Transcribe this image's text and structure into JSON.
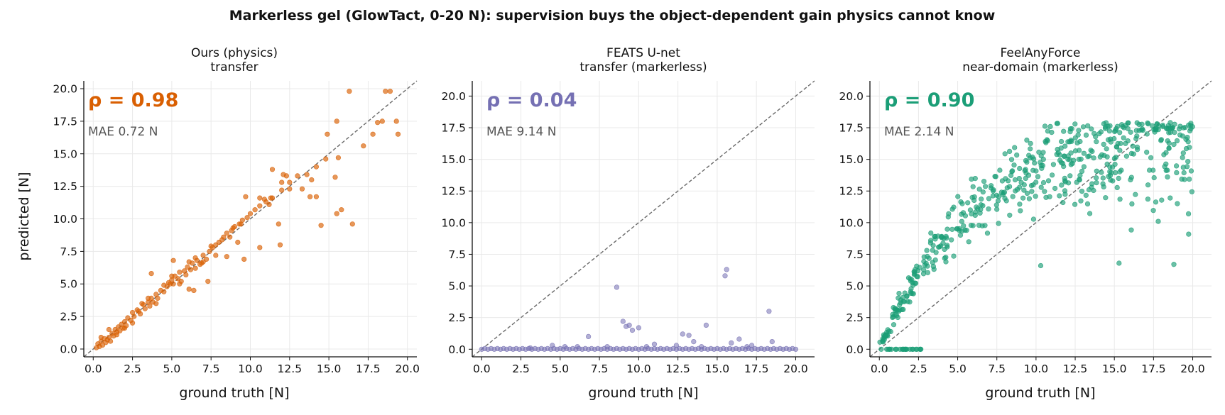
{
  "figure_title": "Markerless gel (GlowTact, 0-20 N): supervision buys the object-dependent gain physics cannot know",
  "chart_data": [
    {
      "type": "scatter",
      "title_line1": "Ours (physics)",
      "title_line2": "transfer",
      "xlabel": "ground truth [N]",
      "ylabel": "predicted [N]",
      "stat_text": "ρ = 0.98",
      "mae_text": "MAE 0.72 N",
      "color": "#d95f02",
      "xlim": [
        -0.6,
        20.6
      ],
      "ylim": [
        -0.6,
        20.6
      ],
      "xticks": [
        "0.0",
        "2.5",
        "5.0",
        "7.5",
        "10.0",
        "12.5",
        "15.0",
        "17.5",
        "20.0"
      ],
      "yticks": [
        "0.0",
        "2.5",
        "5.0",
        "7.5",
        "10.0",
        "12.5",
        "15.0",
        "17.5",
        "20.0"
      ],
      "points": [
        [
          0.2,
          0.1
        ],
        [
          0.3,
          0.4
        ],
        [
          0.4,
          0.2
        ],
        [
          0.5,
          0.6
        ],
        [
          0.6,
          0.3
        ],
        [
          0.7,
          0.8
        ],
        [
          0.8,
          0.5
        ],
        [
          0.9,
          0.7
        ],
        [
          1.0,
          0.9
        ],
        [
          1.1,
          0.6
        ],
        [
          1.2,
          1.2
        ],
        [
          1.3,
          1.0
        ],
        [
          1.4,
          1.5
        ],
        [
          1.5,
          1.3
        ],
        [
          1.6,
          1.7
        ],
        [
          1.7,
          1.4
        ],
        [
          1.8,
          1.9
        ],
        [
          1.9,
          1.6
        ],
        [
          2.0,
          2.1
        ],
        [
          2.1,
          1.8
        ],
        [
          2.2,
          2.4
        ],
        [
          2.4,
          2.2
        ],
        [
          2.5,
          2.8
        ],
        [
          2.6,
          2.5
        ],
        [
          2.8,
          3.0
        ],
        [
          3.0,
          2.7
        ],
        [
          3.2,
          3.4
        ],
        [
          3.3,
          3.1
        ],
        [
          3.5,
          3.6
        ],
        [
          3.6,
          3.3
        ],
        [
          3.7,
          3.9
        ],
        [
          3.8,
          3.6
        ],
        [
          4.0,
          4.2
        ],
        [
          4.1,
          3.9
        ],
        [
          4.3,
          4.5
        ],
        [
          4.5,
          4.4
        ],
        [
          4.7,
          4.8
        ],
        [
          4.8,
          5.1
        ],
        [
          5.0,
          5.3
        ],
        [
          5.1,
          5.0
        ],
        [
          5.2,
          5.6
        ],
        [
          5.4,
          5.4
        ],
        [
          5.5,
          5.9
        ],
        [
          5.6,
          5.2
        ],
        [
          5.8,
          6.0
        ],
        [
          5.9,
          5.7
        ],
        [
          6.0,
          6.3
        ],
        [
          6.2,
          6.1
        ],
        [
          6.3,
          6.6
        ],
        [
          6.5,
          6.2
        ],
        [
          6.6,
          6.8
        ],
        [
          6.8,
          6.5
        ],
        [
          7.0,
          7.2
        ],
        [
          7.2,
          6.9
        ],
        [
          7.4,
          7.5
        ],
        [
          7.6,
          7.8
        ],
        [
          7.8,
          8.0
        ],
        [
          8.0,
          8.2
        ],
        [
          8.3,
          8.6
        ],
        [
          8.5,
          8.9
        ],
        [
          8.8,
          9.1
        ],
        [
          9.0,
          9.4
        ],
        [
          9.3,
          9.6
        ],
        [
          9.5,
          9.9
        ],
        [
          9.8,
          10.1
        ],
        [
          10.0,
          10.4
        ],
        [
          10.3,
          10.7
        ],
        [
          10.6,
          11.0
        ],
        [
          11.0,
          11.3
        ],
        [
          11.4,
          11.6
        ],
        [
          12.0,
          12.2
        ],
        [
          12.5,
          12.8
        ],
        [
          13.0,
          13.3
        ],
        [
          13.6,
          13.4
        ],
        [
          14.2,
          14.0
        ],
        [
          14.8,
          14.6
        ],
        [
          0.5,
          0.9
        ],
        [
          1.0,
          1.5
        ],
        [
          1.5,
          1.1
        ],
        [
          2.0,
          1.6
        ],
        [
          2.5,
          2.0
        ],
        [
          3.1,
          3.5
        ],
        [
          3.5,
          3.9
        ],
        [
          4.0,
          3.5
        ],
        [
          4.5,
          4.9
        ],
        [
          5.0,
          5.6
        ],
        [
          5.5,
          5.0
        ],
        [
          6.1,
          6.7
        ],
        [
          6.5,
          7.0
        ],
        [
          7.0,
          6.7
        ],
        [
          7.5,
          7.9
        ],
        [
          8.2,
          8.4
        ],
        [
          8.7,
          8.6
        ],
        [
          3.7,
          5.8
        ],
        [
          5.1,
          6.8
        ],
        [
          6.1,
          4.6
        ],
        [
          6.4,
          4.5
        ],
        [
          7.3,
          5.2
        ],
        [
          7.8,
          7.2
        ],
        [
          8.5,
          7.1
        ],
        [
          9.2,
          8.2
        ],
        [
          9.6,
          6.9
        ],
        [
          9.7,
          11.7
        ],
        [
          10.6,
          11.6
        ],
        [
          10.9,
          11.5
        ],
        [
          11.2,
          11.1
        ],
        [
          11.4,
          13.8
        ],
        [
          11.8,
          9.6
        ],
        [
          11.9,
          8.0
        ],
        [
          12.0,
          12.8
        ],
        [
          12.1,
          13.4
        ],
        [
          12.3,
          13.3
        ],
        [
          13.3,
          12.3
        ],
        [
          13.8,
          11.7
        ],
        [
          14.2,
          11.7
        ],
        [
          14.5,
          9.5
        ],
        [
          14.9,
          16.5
        ],
        [
          15.4,
          13.2
        ],
        [
          15.6,
          14.7
        ],
        [
          15.8,
          10.7
        ],
        [
          16.3,
          19.8
        ],
        [
          16.5,
          9.6
        ],
        [
          17.2,
          15.6
        ],
        [
          17.8,
          16.5
        ],
        [
          18.1,
          17.4
        ],
        [
          18.6,
          19.8
        ],
        [
          18.9,
          19.8
        ],
        [
          19.3,
          17.5
        ],
        [
          19.4,
          16.5
        ],
        [
          10.6,
          7.8
        ],
        [
          15.5,
          17.5
        ],
        [
          15.5,
          10.4
        ],
        [
          18.4,
          17.5
        ],
        [
          11.3,
          11.6
        ],
        [
          12.5,
          12.3
        ],
        [
          2.9,
          2.9
        ],
        [
          4.9,
          5.0
        ],
        [
          6.9,
          6.6
        ],
        [
          8.9,
          9.3
        ],
        [
          9.4,
          9.6
        ],
        [
          13.9,
          13.0
        ]
      ]
    },
    {
      "type": "scatter",
      "title_line1": "FEATS U-net",
      "title_line2": "transfer (markerless)",
      "xlabel": "ground truth [N]",
      "ylabel": "",
      "stat_text": "ρ = 0.04",
      "mae_text": "MAE 9.14 N",
      "color": "#7570b3",
      "xlim": [
        -0.6,
        21.2
      ],
      "ylim": [
        -0.6,
        21.2
      ],
      "xticks": [
        "0.0",
        "2.5",
        "5.0",
        "7.5",
        "10.0",
        "12.5",
        "15.0",
        "17.5",
        "20.0"
      ],
      "yticks": [
        "0.0",
        "2.5",
        "5.0",
        "7.5",
        "10.0",
        "12.5",
        "15.0",
        "17.5",
        "20.0"
      ],
      "points": [
        [
          0.0,
          0.0
        ],
        [
          0.4,
          0.0
        ],
        [
          0.8,
          0.0
        ],
        [
          1.2,
          0.0
        ],
        [
          1.6,
          0.0
        ],
        [
          2.0,
          0.0
        ],
        [
          2.4,
          0.0
        ],
        [
          2.8,
          0.0
        ],
        [
          3.2,
          0.0
        ],
        [
          3.6,
          0.0
        ],
        [
          4.0,
          0.0
        ],
        [
          4.4,
          0.0
        ],
        [
          4.8,
          0.0
        ],
        [
          5.2,
          0.0
        ],
        [
          5.6,
          0.0
        ],
        [
          6.0,
          0.0
        ],
        [
          6.4,
          0.0
        ],
        [
          6.8,
          0.0
        ],
        [
          7.2,
          0.0
        ],
        [
          7.6,
          0.0
        ],
        [
          8.0,
          0.0
        ],
        [
          8.4,
          0.0
        ],
        [
          8.8,
          0.0
        ],
        [
          9.2,
          0.0
        ],
        [
          9.6,
          0.0
        ],
        [
          10.0,
          0.0
        ],
        [
          10.4,
          0.0
        ],
        [
          10.8,
          0.0
        ],
        [
          11.2,
          0.0
        ],
        [
          11.6,
          0.0
        ],
        [
          12.0,
          0.0
        ],
        [
          12.4,
          0.0
        ],
        [
          12.8,
          0.0
        ],
        [
          13.2,
          0.0
        ],
        [
          13.6,
          0.0
        ],
        [
          14.0,
          0.0
        ],
        [
          14.4,
          0.0
        ],
        [
          14.8,
          0.0
        ],
        [
          15.2,
          0.0
        ],
        [
          15.6,
          0.0
        ],
        [
          16.0,
          0.0
        ],
        [
          16.4,
          0.0
        ],
        [
          16.8,
          0.0
        ],
        [
          17.2,
          0.0
        ],
        [
          17.6,
          0.0
        ],
        [
          18.0,
          0.0
        ],
        [
          18.4,
          0.0
        ],
        [
          18.8,
          0.0
        ],
        [
          19.2,
          0.0
        ],
        [
          19.6,
          0.0
        ],
        [
          20.0,
          0.0
        ],
        [
          0.2,
          0.05
        ],
        [
          0.6,
          0.05
        ],
        [
          1.0,
          0.05
        ],
        [
          1.4,
          0.05
        ],
        [
          1.8,
          0.05
        ],
        [
          2.2,
          0.05
        ],
        [
          2.6,
          0.05
        ],
        [
          3.0,
          0.05
        ],
        [
          3.4,
          0.05
        ],
        [
          3.8,
          0.05
        ],
        [
          4.2,
          0.05
        ],
        [
          4.6,
          0.05
        ],
        [
          5.0,
          0.05
        ],
        [
          5.4,
          0.05
        ],
        [
          5.8,
          0.05
        ],
        [
          6.2,
          0.05
        ],
        [
          6.6,
          0.05
        ],
        [
          7.0,
          0.05
        ],
        [
          7.4,
          0.05
        ],
        [
          7.8,
          0.05
        ],
        [
          8.2,
          0.05
        ],
        [
          8.6,
          0.05
        ],
        [
          9.0,
          0.05
        ],
        [
          9.4,
          0.05
        ],
        [
          9.8,
          0.05
        ],
        [
          10.2,
          0.05
        ],
        [
          10.6,
          0.05
        ],
        [
          11.0,
          0.05
        ],
        [
          11.4,
          0.05
        ],
        [
          11.8,
          0.05
        ],
        [
          12.2,
          0.05
        ],
        [
          12.6,
          0.05
        ],
        [
          13.0,
          0.05
        ],
        [
          13.4,
          0.05
        ],
        [
          13.8,
          0.05
        ],
        [
          14.2,
          0.05
        ],
        [
          14.6,
          0.05
        ],
        [
          15.0,
          0.05
        ],
        [
          15.4,
          0.05
        ],
        [
          15.8,
          0.05
        ],
        [
          16.2,
          0.05
        ],
        [
          16.6,
          0.05
        ],
        [
          17.0,
          0.05
        ],
        [
          17.4,
          0.05
        ],
        [
          17.8,
          0.05
        ],
        [
          18.2,
          0.05
        ],
        [
          18.6,
          0.05
        ],
        [
          19.0,
          0.05
        ],
        [
          19.4,
          0.05
        ],
        [
          19.8,
          0.05
        ],
        [
          8.6,
          4.9
        ],
        [
          9.0,
          2.2
        ],
        [
          9.2,
          1.8
        ],
        [
          9.4,
          1.9
        ],
        [
          9.6,
          1.5
        ],
        [
          10.0,
          1.7
        ],
        [
          6.8,
          1.0
        ],
        [
          12.8,
          1.2
        ],
        [
          13.2,
          1.1
        ],
        [
          13.5,
          0.6
        ],
        [
          14.3,
          1.9
        ],
        [
          15.5,
          5.8
        ],
        [
          15.6,
          6.3
        ],
        [
          15.9,
          0.5
        ],
        [
          16.4,
          0.8
        ],
        [
          18.3,
          3.0
        ],
        [
          18.5,
          0.6
        ],
        [
          4.5,
          0.3
        ],
        [
          5.3,
          0.2
        ],
        [
          11.0,
          0.4
        ],
        [
          12.4,
          0.3
        ],
        [
          14.0,
          0.2
        ],
        [
          17.2,
          0.3
        ],
        [
          10.5,
          0.2
        ],
        [
          8.0,
          0.2
        ],
        [
          3.1,
          0.1
        ],
        [
          6.1,
          0.2
        ],
        [
          16.9,
          0.2
        ]
      ]
    },
    {
      "type": "scatter",
      "title_line1": "FeelAnyForce",
      "title_line2": "near-domain (markerless)",
      "xlabel": "ground truth [N]",
      "ylabel": "",
      "stat_text": "ρ = 0.90",
      "mae_text": "MAE 2.14 N",
      "color": "#1b9e77",
      "xlim": [
        -0.6,
        21.2
      ],
      "ylim": [
        -0.6,
        21.2
      ],
      "xticks": [
        "0.0",
        "2.5",
        "5.0",
        "7.5",
        "10.0",
        "12.5",
        "15.0",
        "17.5",
        "20.0"
      ],
      "yticks": [
        "0.0",
        "2.5",
        "5.0",
        "7.5",
        "10.0",
        "12.5",
        "15.0",
        "17.5",
        "20.0"
      ],
      "points": []
    }
  ]
}
